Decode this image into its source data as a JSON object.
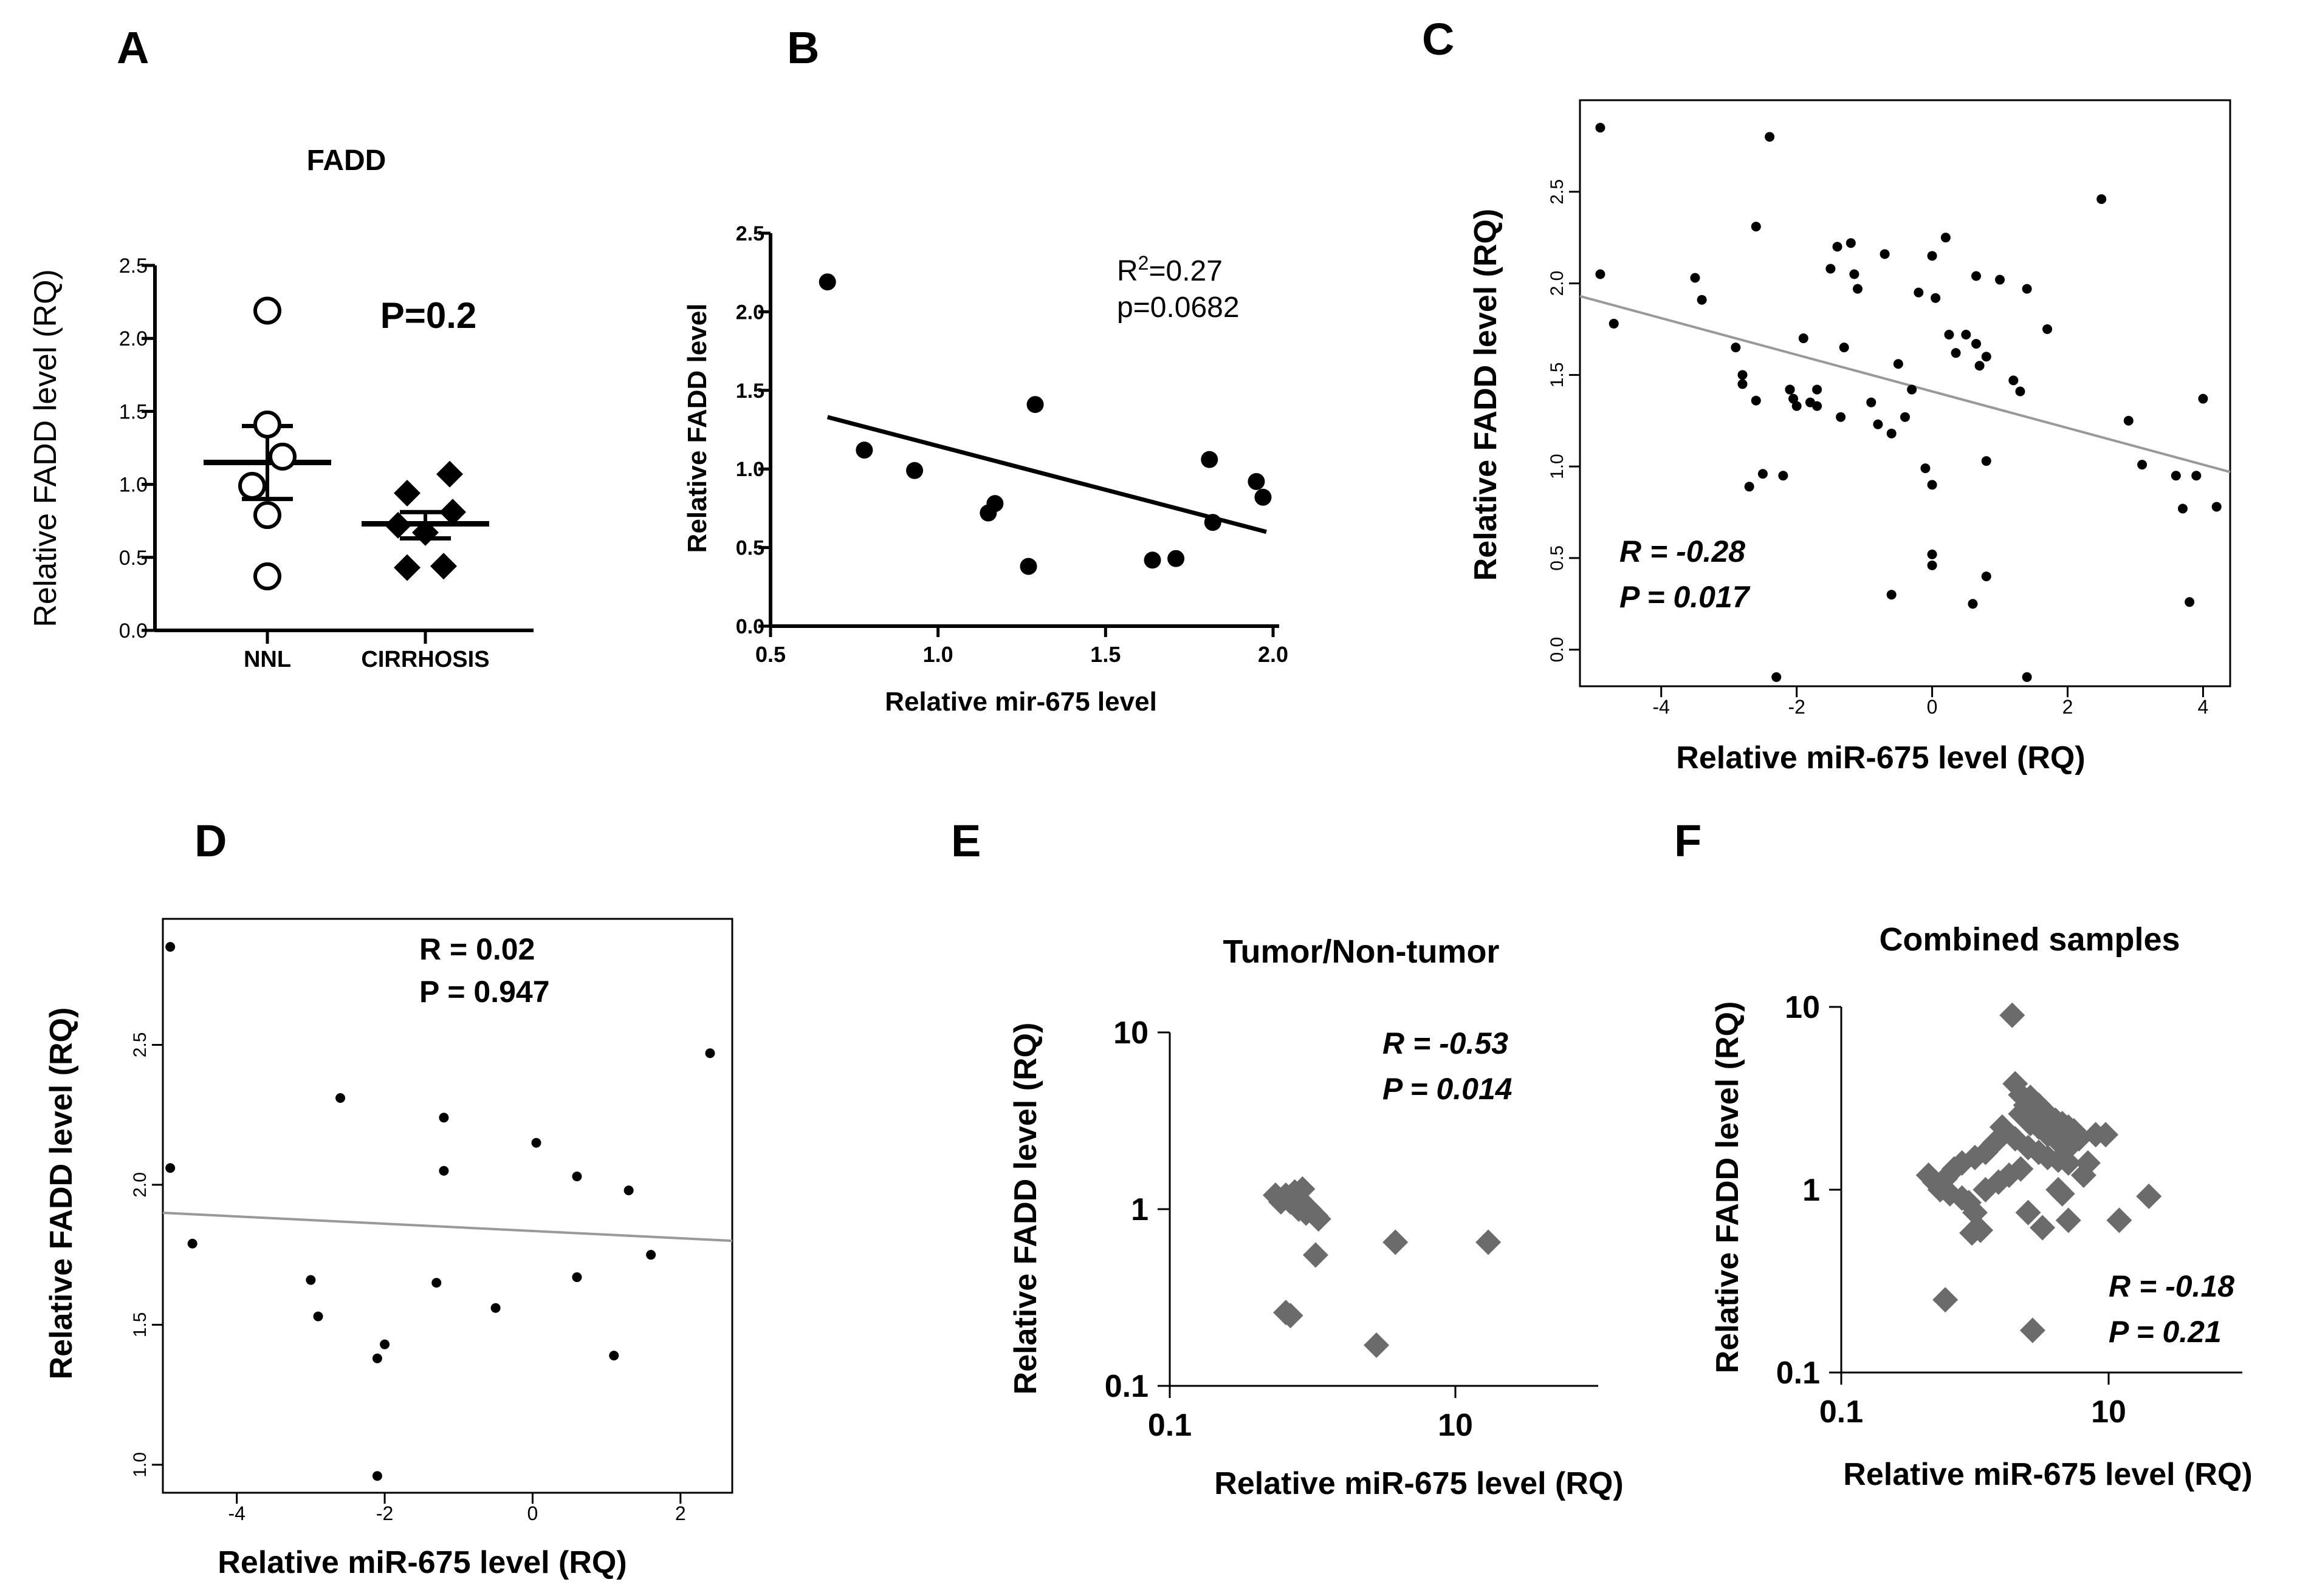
{
  "colors": {
    "ink": "#000000",
    "diamond": "#6b6b6b",
    "fitline_gray": "#999999",
    "background": "#ffffff"
  },
  "chart_data": [
    {
      "id": "A",
      "panel_label": "A",
      "type": "scatter",
      "title": "FADD",
      "ylabel": "Relative FADD level (RQ)",
      "xlabel": "",
      "categories": [
        "NNL",
        "CIRRHOSIS"
      ],
      "yticks": [
        "0.0",
        "0.5",
        "1.0",
        "1.5",
        "2.0",
        "2.5"
      ],
      "ylim": [
        0,
        2.5
      ],
      "series": [
        {
          "name": "NNL",
          "marker": "open-circle",
          "values": [
            2.19,
            1.41,
            1.19,
            0.99,
            0.79,
            0.37
          ],
          "mean": 1.15,
          "sem_low": 0.9,
          "sem_high": 1.4
        },
        {
          "name": "CIRRHOSIS",
          "marker": "diamond",
          "values": [
            1.07,
            0.94,
            0.81,
            0.72,
            0.67,
            0.44,
            0.43
          ],
          "mean": 0.73,
          "sem_low": 0.63,
          "sem_high": 0.81
        }
      ],
      "annotation": "P=0.2"
    },
    {
      "id": "B",
      "panel_label": "B",
      "type": "scatter",
      "xlabel": "Relative mir-675 level",
      "ylabel": "Relative FADD level",
      "xticks": [
        "0.5",
        "1.0",
        "1.5",
        "2.0"
      ],
      "yticks": [
        "0.0",
        "0.5",
        "1.0",
        "1.5",
        "2.0",
        "2.5"
      ],
      "xlim": [
        0.5,
        2.0
      ],
      "ylim": [
        0,
        2.5
      ],
      "points": [
        [
          0.67,
          2.19
        ],
        [
          0.78,
          1.12
        ],
        [
          0.93,
          0.99
        ],
        [
          1.15,
          0.72
        ],
        [
          1.17,
          0.78
        ],
        [
          1.27,
          0.38
        ],
        [
          1.29,
          1.41
        ],
        [
          1.64,
          0.42
        ],
        [
          1.71,
          0.43
        ],
        [
          1.81,
          1.06
        ],
        [
          1.82,
          0.66
        ],
        [
          1.95,
          0.92
        ],
        [
          1.97,
          0.82
        ]
      ],
      "fit": [
        [
          0.67,
          1.33
        ],
        [
          1.98,
          0.6
        ]
      ],
      "r2_prefix": "R",
      "r2_sup": "2",
      "r2_value": "=0.27",
      "p_text": "p=0.0682"
    },
    {
      "id": "C",
      "panel_label": "C",
      "type": "scatter",
      "xlabel": "Relative miR-675 level (RQ)",
      "ylabel": "Relative FADD level (RQ)",
      "xticks": [
        "-4",
        "-2",
        "0",
        "2",
        "4"
      ],
      "yticks": [
        "0.0",
        "0.5",
        "1.0",
        "1.5",
        "2.0",
        "2.5"
      ],
      "xlim": [
        -5.2,
        4.4
      ],
      "ylim": [
        -0.2,
        3.0
      ],
      "points": [
        [
          -4.9,
          2.85
        ],
        [
          -4.9,
          2.05
        ],
        [
          -4.7,
          1.78
        ],
        [
          -3.5,
          2.03
        ],
        [
          -3.4,
          1.91
        ],
        [
          -2.6,
          2.31
        ],
        [
          -2.4,
          2.8
        ],
        [
          -2.9,
          1.65
        ],
        [
          -2.8,
          1.5
        ],
        [
          -2.8,
          1.45
        ],
        [
          -2.6,
          1.36
        ],
        [
          -2.5,
          0.96
        ],
        [
          -2.7,
          0.89
        ],
        [
          -2.2,
          0.95
        ],
        [
          -2.1,
          1.42
        ],
        [
          -2.05,
          1.37
        ],
        [
          -2.0,
          1.33
        ],
        [
          -2.1,
          1.42
        ],
        [
          -1.9,
          1.7
        ],
        [
          -1.8,
          1.35
        ],
        [
          -1.7,
          1.33
        ],
        [
          -1.7,
          1.42
        ],
        [
          -1.5,
          2.08
        ],
        [
          -1.4,
          2.2
        ],
        [
          -1.3,
          1.65
        ],
        [
          -1.35,
          1.27
        ],
        [
          -1.2,
          2.22
        ],
        [
          -1.15,
          2.05
        ],
        [
          -1.1,
          1.97
        ],
        [
          -0.9,
          1.35
        ],
        [
          -0.8,
          1.23
        ],
        [
          -0.7,
          2.16
        ],
        [
          -0.6,
          1.18
        ],
        [
          -0.5,
          1.56
        ],
        [
          -0.4,
          1.27
        ],
        [
          -0.3,
          1.42
        ],
        [
          -0.2,
          1.95
        ],
        [
          0.0,
          2.15
        ],
        [
          0.05,
          1.92
        ],
        [
          0.2,
          2.25
        ],
        [
          0.25,
          1.72
        ],
        [
          0.35,
          1.62
        ],
        [
          0.5,
          1.72
        ],
        [
          0.65,
          2.04
        ],
        [
          0.65,
          1.67
        ],
        [
          0.7,
          1.55
        ],
        [
          0.8,
          1.6
        ],
        [
          1.0,
          2.02
        ],
        [
          1.2,
          1.47
        ],
        [
          1.3,
          1.41
        ],
        [
          1.4,
          1.97
        ],
        [
          1.7,
          1.75
        ],
        [
          -0.1,
          0.99
        ],
        [
          0.0,
          0.9
        ],
        [
          0.0,
          0.52
        ],
        [
          0.0,
          0.46
        ],
        [
          -0.6,
          0.3
        ],
        [
          0.6,
          0.25
        ],
        [
          0.8,
          0.4
        ],
        [
          0.8,
          1.03
        ],
        [
          1.4,
          -0.15
        ],
        [
          -2.3,
          -0.15
        ],
        [
          2.5,
          2.46
        ],
        [
          2.9,
          1.25
        ],
        [
          3.1,
          1.01
        ],
        [
          3.6,
          0.95
        ],
        [
          3.7,
          0.77
        ],
        [
          3.8,
          0.26
        ],
        [
          3.9,
          0.95
        ],
        [
          4.0,
          1.37
        ],
        [
          4.2,
          0.78
        ]
      ],
      "fit": [
        [
          -5.2,
          1.93
        ],
        [
          4.4,
          0.97
        ]
      ],
      "r_text": "R = -0.28",
      "p_text": "P = 0.017"
    },
    {
      "id": "D",
      "panel_label": "D",
      "type": "scatter",
      "xlabel": "Relative miR-675 level (RQ)",
      "ylabel": "Relative FADD level (RQ)",
      "xticks": [
        "-4",
        "-2",
        "0",
        "2"
      ],
      "yticks": [
        "1.0",
        "1.5",
        "2.0",
        "2.5"
      ],
      "xlim": [
        -5.0,
        2.7
      ],
      "ylim": [
        0.9,
        2.95
      ],
      "points": [
        [
          -4.9,
          2.85
        ],
        [
          -4.9,
          2.06
        ],
        [
          -4.6,
          1.79
        ],
        [
          -3.0,
          1.66
        ],
        [
          -2.9,
          1.53
        ],
        [
          -2.6,
          2.31
        ],
        [
          -2.1,
          1.38
        ],
        [
          -2.0,
          1.43
        ],
        [
          -2.1,
          0.96
        ],
        [
          -1.3,
          1.65
        ],
        [
          -1.2,
          2.24
        ],
        [
          -1.2,
          2.05
        ],
        [
          -0.5,
          1.56
        ],
        [
          0.05,
          2.15
        ],
        [
          0.6,
          2.03
        ],
        [
          0.6,
          1.67
        ],
        [
          1.1,
          1.39
        ],
        [
          1.3,
          1.98
        ],
        [
          1.6,
          1.75
        ],
        [
          2.4,
          2.47
        ]
      ],
      "fit": [
        [
          -5.0,
          1.9
        ],
        [
          2.7,
          1.8
        ]
      ],
      "r_text": "R = 0.02",
      "p_text": "P = 0.947"
    },
    {
      "id": "E",
      "panel_label": "E",
      "type": "scatter",
      "scale": "log",
      "title": "Tumor/Non-tumor",
      "xlabel": "Relative miR-675 level (RQ)",
      "ylabel": "Relative FADD level (RQ)",
      "xticks": [
        "0.1",
        "10"
      ],
      "yticks": [
        "0.1",
        "1",
        "10"
      ],
      "xlim": [
        0.1,
        100
      ],
      "ylim": [
        0.1,
        10
      ],
      "points": [
        [
          0.55,
          1.2
        ],
        [
          0.6,
          1.1
        ],
        [
          0.65,
          1.2
        ],
        [
          0.7,
          1.1
        ],
        [
          0.75,
          1.25
        ],
        [
          0.8,
          1.15
        ],
        [
          0.85,
          1.3
        ],
        [
          0.8,
          1.0
        ],
        [
          0.9,
          0.95
        ],
        [
          0.85,
          1.05
        ],
        [
          0.95,
          1.0
        ],
        [
          1.05,
          0.92
        ],
        [
          1.1,
          0.88
        ],
        [
          1.05,
          0.55
        ],
        [
          0.65,
          0.26
        ],
        [
          0.7,
          0.25
        ],
        [
          2.8,
          0.17
        ],
        [
          3.8,
          0.65
        ],
        [
          17,
          0.65
        ]
      ],
      "r_text": "R = -0.53",
      "p_text": "P = 0.014"
    },
    {
      "id": "F",
      "panel_label": "F",
      "type": "scatter",
      "scale": "log",
      "title": "Combined samples",
      "xlabel": "Relative miR-675 level (RQ)",
      "ylabel": "Relative FADD level (RQ)",
      "xticks": [
        "0.1",
        "10"
      ],
      "yticks": [
        "0.1",
        "1",
        "10"
      ],
      "xlim": [
        0.1,
        100
      ],
      "ylim": [
        0.1,
        10
      ],
      "points": [
        [
          1.9,
          9.0
        ],
        [
          2.0,
          3.8
        ],
        [
          2.2,
          3.3
        ],
        [
          2.4,
          2.9
        ],
        [
          2.6,
          3.2
        ],
        [
          2.8,
          2.6
        ],
        [
          3.0,
          2.9
        ],
        [
          3.3,
          2.7
        ],
        [
          3.6,
          2.5
        ],
        [
          4.0,
          2.4
        ],
        [
          4.5,
          2.3
        ],
        [
          5.0,
          2.2
        ],
        [
          5.5,
          2.1
        ],
        [
          2.2,
          2.6
        ],
        [
          2.6,
          2.3
        ],
        [
          3.0,
          2.2
        ],
        [
          3.5,
          2.0
        ],
        [
          4.0,
          1.9
        ],
        [
          4.5,
          1.8
        ],
        [
          5.0,
          1.7
        ],
        [
          6.0,
          1.9
        ],
        [
          2.0,
          1.9
        ],
        [
          2.5,
          1.7
        ],
        [
          3.0,
          1.6
        ],
        [
          3.5,
          1.5
        ],
        [
          4.2,
          1.45
        ],
        [
          5.0,
          1.4
        ],
        [
          1.6,
          2.2
        ],
        [
          1.4,
          1.8
        ],
        [
          1.2,
          1.6
        ],
        [
          1.0,
          1.5
        ],
        [
          0.8,
          1.4
        ],
        [
          0.7,
          1.3
        ],
        [
          0.6,
          1.15
        ],
        [
          0.5,
          1.1
        ],
        [
          0.45,
          1.2
        ],
        [
          0.55,
          1.0
        ],
        [
          0.65,
          0.95
        ],
        [
          0.8,
          0.9
        ],
        [
          0.9,
          0.85
        ],
        [
          1.2,
          1.0
        ],
        [
          1.5,
          1.1
        ],
        [
          1.8,
          1.2
        ],
        [
          2.2,
          1.3
        ],
        [
          1.0,
          0.75
        ],
        [
          1.1,
          0.6
        ],
        [
          0.95,
          0.58
        ],
        [
          0.6,
          0.25
        ],
        [
          2.7,
          0.17
        ],
        [
          4.2,
          1.0
        ],
        [
          4.5,
          0.95
        ],
        [
          5.0,
          0.68
        ],
        [
          6.5,
          1.2
        ],
        [
          7.0,
          1.4
        ],
        [
          8.0,
          2.0
        ],
        [
          9.5,
          2.0
        ],
        [
          12.0,
          0.68
        ],
        [
          20.0,
          0.92
        ],
        [
          3.2,
          0.62
        ],
        [
          2.5,
          0.75
        ]
      ],
      "r_text": "R = -0.18",
      "p_text": "P = 0.21"
    }
  ]
}
